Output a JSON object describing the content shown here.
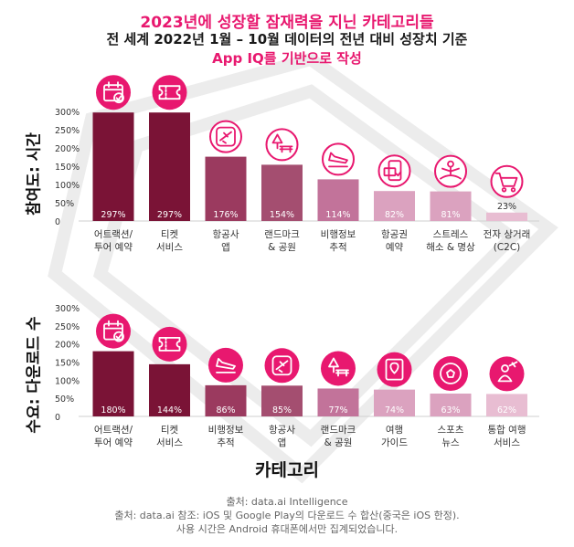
{
  "header": {
    "title": "2023년에 성장할 잠재력을 지닌 카테고리들",
    "subtitle": "전 세계 2022년 1월 – 10월 데이터의 전년 대비 성장치 기준",
    "note": "App IQ를 기반으로 작성"
  },
  "x_axis_title": "카테고리",
  "footer": {
    "line1": "출처: data.ai Intelligence",
    "line2": "출처: data.ai 참조: iOS 및 Google Play의 다운로드 수 합산(중국은 iOS 한정).",
    "line3": "사용 시간은 Android 휴대폰에서만 집계되었습니다."
  },
  "colors": {
    "accent": "#e8186f",
    "bar_levels": [
      "#7a1336",
      "#7a1336",
      "#9b3a5f",
      "#a44e70",
      "#c2739a",
      "#dba2bf",
      "#dba2bf",
      "#e8bdd2"
    ]
  },
  "chart_data": [
    {
      "type": "bar",
      "ylabel": "참여도: 시간",
      "yticks": [
        "300%",
        "250%",
        "200%",
        "150%",
        "100%",
        "50%",
        "0"
      ],
      "ylim": [
        0,
        300
      ],
      "categories": [
        "어트랙션/\n투어 예약",
        "티켓\n서비스",
        "항공사\n앱",
        "랜드마크\n& 공원",
        "비행정보\n추적",
        "항공권\n예약",
        "스트레스\n해소 & 명상",
        "전자 상거래\n(C2C)"
      ],
      "values": [
        297,
        297,
        176,
        154,
        114,
        82,
        81,
        23
      ],
      "value_labels": [
        "297%",
        "297%",
        "176%",
        "154%",
        "114%",
        "82%",
        "81%",
        "23%"
      ],
      "icons": [
        "calendar-check-icon",
        "ticket-icon",
        "airplane-icon",
        "tree-bench-icon",
        "plane-landing-icon",
        "ticket-phone-icon",
        "meditation-icon",
        "shopping-cart-icon"
      ],
      "icon_style": [
        "filled",
        "filled",
        "outline",
        "outline",
        "outline",
        "outline",
        "outline",
        "outline"
      ]
    },
    {
      "type": "bar",
      "ylabel": "수요: 다운로드 수",
      "yticks": [
        "300%",
        "250%",
        "200%",
        "150%",
        "100%",
        "50%",
        "0"
      ],
      "ylim": [
        0,
        300
      ],
      "categories": [
        "어트랙션/\n투어 예약",
        "티켓\n서비스",
        "비행정보\n추적",
        "항공사\n앱",
        "랜드마크\n& 공원",
        "여행\n가이드",
        "스포츠\n뉴스",
        "통합 여행\n서비스"
      ],
      "values": [
        180,
        144,
        86,
        85,
        77,
        74,
        63,
        62
      ],
      "value_labels": [
        "180%",
        "144%",
        "86%",
        "85%",
        "77%",
        "74%",
        "63%",
        "62%"
      ],
      "icons": [
        "calendar-check-icon",
        "ticket-icon",
        "plane-landing-icon",
        "airplane-icon",
        "tree-bench-icon",
        "map-guide-icon",
        "soccer-ball-icon",
        "travel-agent-icon"
      ],
      "icon_style": [
        "filled",
        "filled",
        "filled",
        "filled",
        "filled",
        "filled",
        "filled",
        "filled"
      ]
    }
  ]
}
